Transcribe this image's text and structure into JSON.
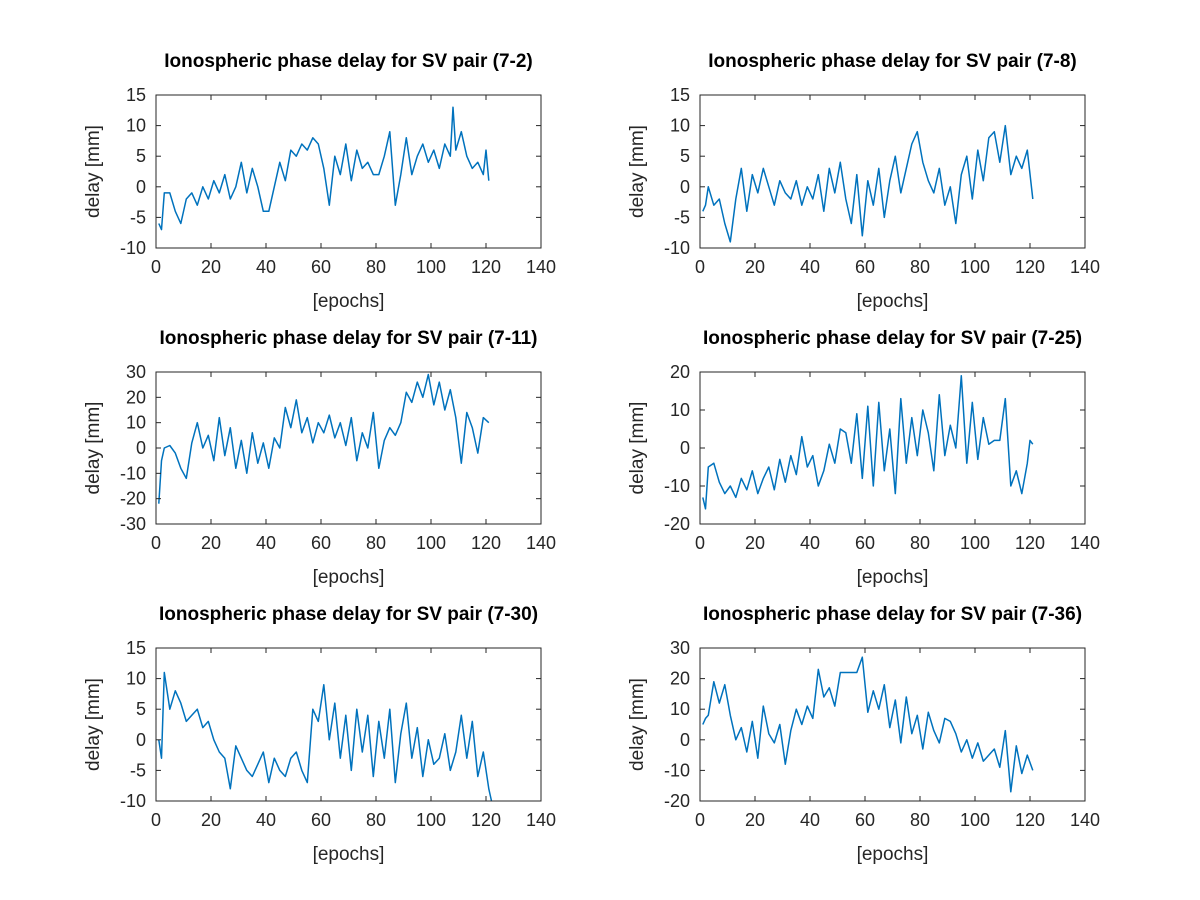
{
  "chart_data": [
    {
      "type": "line",
      "title": "Ionospheric phase delay for SV pair (7-2)",
      "xlabel": "[epochs]",
      "ylabel": "delay [mm]",
      "xlim": [
        0,
        140
      ],
      "ylim": [
        -10,
        15
      ],
      "xticks": [
        "0",
        "20",
        "40",
        "60",
        "80",
        "100",
        "120",
        "140"
      ],
      "yticks": [
        "-10",
        "-5",
        "0",
        "5",
        "10",
        "15"
      ],
      "grid": false,
      "series": [
        {
          "x": [
            1,
            2,
            3,
            5,
            7,
            9,
            11,
            13,
            15,
            17,
            19,
            21,
            23,
            25,
            27,
            29,
            31,
            33,
            35,
            37,
            39,
            41,
            43,
            45,
            47,
            49,
            51,
            53,
            55,
            57,
            59,
            61,
            63,
            65,
            67,
            69,
            71,
            73,
            75,
            77,
            79,
            81,
            83,
            85,
            87,
            89,
            91,
            93,
            95,
            97,
            99,
            101,
            103,
            105,
            107,
            108,
            109,
            111,
            113,
            115,
            117,
            119,
            120,
            121
          ],
          "y": [
            -6,
            -7,
            -1,
            -1,
            -4,
            -6,
            -2,
            -1,
            -3,
            0,
            -2,
            1,
            -1,
            2,
            -2,
            0,
            4,
            -1,
            3,
            0,
            -4,
            -4,
            0,
            4,
            1,
            6,
            5,
            7,
            6,
            8,
            7,
            3,
            -3,
            5,
            2,
            7,
            1,
            6,
            3,
            4,
            2,
            2,
            5,
            9,
            -3,
            2,
            8,
            2,
            5,
            7,
            4,
            6,
            3,
            7,
            5,
            13,
            6,
            9,
            5,
            3,
            4,
            2,
            6,
            1
          ]
        }
      ],
      "color": "#0072bd"
    },
    {
      "type": "line",
      "title": "Ionospheric phase delay for SV pair (7-8)",
      "xlabel": "[epochs]",
      "ylabel": "delay [mm]",
      "xlim": [
        0,
        140
      ],
      "ylim": [
        -10,
        15
      ],
      "xticks": [
        "0",
        "20",
        "40",
        "60",
        "80",
        "100",
        "120",
        "140"
      ],
      "yticks": [
        "-10",
        "-5",
        "0",
        "5",
        "10",
        "15"
      ],
      "grid": false,
      "series": [
        {
          "x": [
            1,
            2,
            3,
            5,
            7,
            9,
            11,
            13,
            15,
            17,
            19,
            21,
            23,
            25,
            27,
            29,
            31,
            33,
            35,
            37,
            39,
            41,
            43,
            45,
            47,
            49,
            51,
            53,
            55,
            57,
            59,
            61,
            63,
            65,
            67,
            69,
            71,
            73,
            75,
            77,
            79,
            81,
            83,
            85,
            87,
            89,
            91,
            93,
            95,
            97,
            99,
            101,
            103,
            105,
            107,
            109,
            111,
            113,
            115,
            117,
            119,
            121
          ],
          "y": [
            -4,
            -3,
            0,
            -3,
            -2,
            -6,
            -9,
            -2,
            3,
            -4,
            2,
            -1,
            3,
            0,
            -3,
            1,
            -1,
            -2,
            1,
            -3,
            0,
            -2,
            2,
            -4,
            3,
            -1,
            4,
            -2,
            -6,
            2,
            -8,
            1,
            -3,
            3,
            -5,
            1,
            5,
            -1,
            3,
            7,
            9,
            4,
            1,
            -1,
            3,
            -3,
            0,
            -6,
            2,
            5,
            -2,
            6,
            1,
            8,
            9,
            4,
            10,
            2,
            5,
            3,
            6,
            -2
          ]
        }
      ],
      "color": "#0072bd"
    },
    {
      "type": "line",
      "title": "Ionospheric phase delay for SV pair (7-11)",
      "xlabel": "[epochs]",
      "ylabel": "delay [mm]",
      "xlim": [
        0,
        140
      ],
      "ylim": [
        -30,
        30
      ],
      "xticks": [
        "0",
        "20",
        "40",
        "60",
        "80",
        "100",
        "120",
        "140"
      ],
      "yticks": [
        "-30",
        "-20",
        "-10",
        "0",
        "10",
        "20",
        "30"
      ],
      "grid": false,
      "series": [
        {
          "x": [
            1,
            2,
            3,
            5,
            7,
            9,
            11,
            13,
            15,
            17,
            19,
            21,
            23,
            25,
            27,
            29,
            31,
            33,
            35,
            37,
            39,
            41,
            43,
            45,
            47,
            49,
            51,
            53,
            55,
            57,
            59,
            61,
            63,
            65,
            67,
            69,
            71,
            73,
            75,
            77,
            79,
            81,
            83,
            85,
            87,
            89,
            91,
            93,
            95,
            97,
            99,
            101,
            103,
            105,
            107,
            109,
            111,
            113,
            115,
            117,
            119,
            121
          ],
          "y": [
            -22,
            -5,
            0,
            1,
            -2,
            -8,
            -12,
            2,
            10,
            0,
            5,
            -5,
            12,
            -3,
            8,
            -8,
            3,
            -10,
            6,
            -6,
            2,
            -8,
            4,
            0,
            16,
            8,
            19,
            6,
            12,
            2,
            10,
            6,
            13,
            4,
            10,
            1,
            12,
            -5,
            6,
            0,
            14,
            -8,
            3,
            8,
            5,
            10,
            22,
            18,
            26,
            20,
            29,
            17,
            26,
            15,
            23,
            12,
            -6,
            14,
            8,
            -2,
            12,
            10
          ]
        }
      ],
      "color": "#0072bd"
    },
    {
      "type": "line",
      "title": "Ionospheric phase delay for SV pair (7-25)",
      "xlabel": "[epochs]",
      "ylabel": "delay [mm]",
      "xlim": [
        0,
        140
      ],
      "ylim": [
        -20,
        20
      ],
      "xticks": [
        "0",
        "20",
        "40",
        "60",
        "80",
        "100",
        "120",
        "140"
      ],
      "yticks": [
        "-20",
        "-10",
        "0",
        "10",
        "20"
      ],
      "grid": false,
      "series": [
        {
          "x": [
            1,
            2,
            3,
            5,
            7,
            9,
            11,
            13,
            15,
            17,
            19,
            21,
            23,
            25,
            27,
            29,
            31,
            33,
            35,
            37,
            39,
            41,
            43,
            45,
            47,
            49,
            51,
            53,
            55,
            57,
            59,
            61,
            63,
            65,
            67,
            69,
            71,
            73,
            75,
            77,
            79,
            81,
            83,
            85,
            87,
            89,
            91,
            93,
            95,
            97,
            99,
            101,
            103,
            105,
            107,
            109,
            111,
            113,
            115,
            117,
            119,
            120,
            121
          ],
          "y": [
            -13,
            -16,
            -5,
            -4,
            -9,
            -12,
            -10,
            -13,
            -8,
            -11,
            -6,
            -12,
            -8,
            -5,
            -11,
            -3,
            -9,
            -2,
            -7,
            3,
            -5,
            -2,
            -10,
            -6,
            1,
            -4,
            5,
            4,
            -4,
            9,
            -8,
            11,
            -10,
            12,
            -6,
            5,
            -12,
            13,
            -4,
            8,
            -2,
            10,
            4,
            -6,
            14,
            -2,
            6,
            0,
            19,
            -4,
            12,
            -3,
            8,
            1,
            2,
            2,
            13,
            -10,
            -6,
            -12,
            -4,
            2,
            1
          ]
        }
      ],
      "color": "#0072bd"
    },
    {
      "type": "line",
      "title": "Ionospheric phase delay for SV pair (7-30)",
      "xlabel": "[epochs]",
      "ylabel": "delay [mm]",
      "xlim": [
        0,
        140
      ],
      "ylim": [
        -10,
        15
      ],
      "xticks": [
        "0",
        "20",
        "40",
        "60",
        "80",
        "100",
        "120",
        "140"
      ],
      "yticks": [
        "-10",
        "-5",
        "0",
        "5",
        "10",
        "15"
      ],
      "grid": false,
      "series": [
        {
          "x": [
            1,
            2,
            3,
            5,
            7,
            9,
            11,
            13,
            15,
            17,
            19,
            21,
            23,
            25,
            27,
            29,
            31,
            33,
            35,
            37,
            39,
            41,
            43,
            45,
            47,
            49,
            51,
            53,
            55,
            57,
            59,
            61,
            63,
            65,
            67,
            69,
            71,
            73,
            75,
            77,
            79,
            81,
            83,
            85,
            87,
            89,
            91,
            93,
            95,
            97,
            99,
            101,
            103,
            105,
            107,
            109,
            111,
            113,
            115,
            117,
            119,
            121,
            122
          ],
          "y": [
            0,
            -3,
            11,
            5,
            8,
            6,
            3,
            4,
            5,
            2,
            3,
            0,
            -2,
            -3,
            -8,
            -1,
            -3,
            -5,
            -6,
            -4,
            -2,
            -7,
            -3,
            -5,
            -6,
            -3,
            -2,
            -5,
            -7,
            5,
            3,
            9,
            0,
            6,
            -3,
            4,
            -5,
            5,
            -2,
            4,
            -6,
            3,
            -3,
            5,
            -7,
            1,
            6,
            -3,
            2,
            -6,
            0,
            -4,
            -3,
            1,
            -5,
            -2,
            4,
            -3,
            3,
            -6,
            -2,
            -8,
            -10
          ]
        }
      ],
      "color": "#0072bd"
    },
    {
      "type": "line",
      "title": "Ionospheric phase delay for SV pair (7-36)",
      "xlabel": "[epochs]",
      "ylabel": "delay [mm]",
      "xlim": [
        0,
        140
      ],
      "ylim": [
        -20,
        30
      ],
      "xticks": [
        "0",
        "20",
        "40",
        "60",
        "80",
        "100",
        "120",
        "140"
      ],
      "yticks": [
        "-20",
        "-10",
        "0",
        "10",
        "20",
        "30"
      ],
      "grid": false,
      "series": [
        {
          "x": [
            1,
            2,
            3,
            5,
            7,
            9,
            11,
            13,
            15,
            17,
            19,
            21,
            23,
            25,
            27,
            29,
            31,
            33,
            35,
            37,
            39,
            41,
            43,
            45,
            47,
            49,
            51,
            53,
            55,
            57,
            59,
            61,
            63,
            65,
            67,
            69,
            71,
            73,
            75,
            77,
            79,
            81,
            83,
            85,
            87,
            89,
            91,
            93,
            95,
            97,
            99,
            101,
            103,
            105,
            107,
            109,
            111,
            113,
            115,
            117,
            119,
            121
          ],
          "y": [
            5,
            7,
            8,
            19,
            12,
            18,
            8,
            0,
            4,
            -4,
            6,
            -6,
            11,
            2,
            -1,
            5,
            -8,
            3,
            10,
            5,
            11,
            7,
            23,
            14,
            17,
            11,
            22,
            22,
            22,
            22,
            27,
            9,
            16,
            10,
            18,
            4,
            13,
            -1,
            14,
            2,
            8,
            -3,
            9,
            3,
            -1,
            7,
            6,
            2,
            -4,
            0,
            -6,
            -1,
            -7,
            -5,
            -3,
            -9,
            3,
            -17,
            -2,
            -11,
            -5,
            -10
          ]
        }
      ],
      "color": "#0072bd"
    }
  ]
}
